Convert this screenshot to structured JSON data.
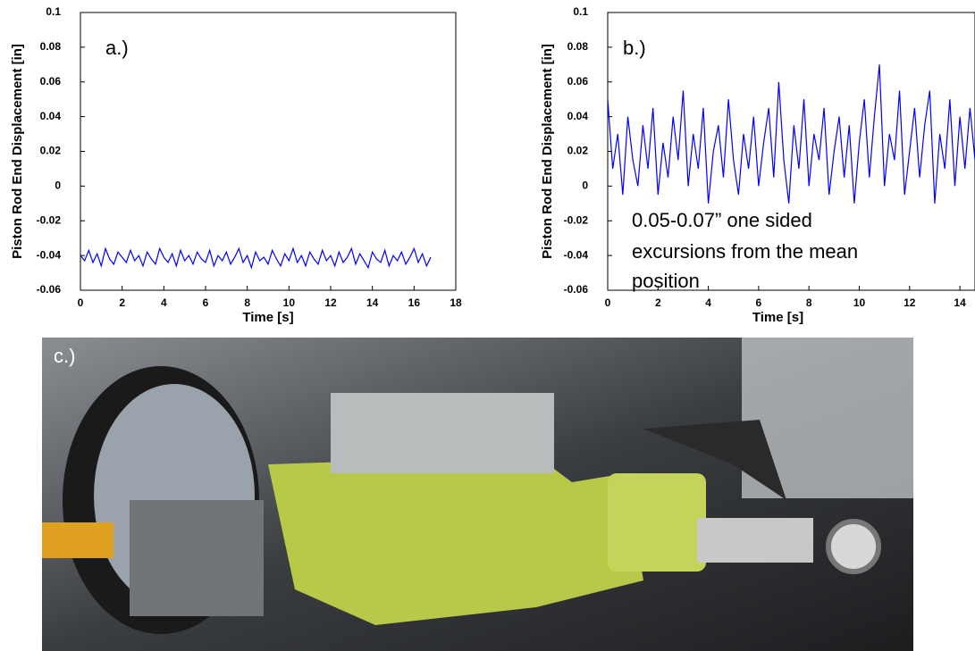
{
  "chart_data": [
    {
      "type": "line",
      "ylabel": "Piston Rod End Displacement [in]",
      "xlabel": "Time [s]",
      "annotations": [
        "a.)"
      ],
      "xlim": [
        0,
        18
      ],
      "xticks": [
        0,
        2,
        4,
        6,
        8,
        10,
        12,
        14,
        16,
        18
      ],
      "ylim": [
        -0.06,
        0.1
      ],
      "yticks": [
        -0.06,
        -0.04,
        -0.02,
        0,
        0.02,
        0.04,
        0.06,
        0.08,
        0.1
      ],
      "x": [
        0,
        0.2,
        0.4,
        0.6,
        0.8,
        1,
        1.2,
        1.4,
        1.6,
        1.8,
        2,
        2.2,
        2.4,
        2.6,
        2.8,
        3,
        3.2,
        3.4,
        3.6,
        3.8,
        4,
        4.2,
        4.4,
        4.6,
        4.8,
        5,
        5.2,
        5.4,
        5.6,
        5.8,
        6,
        6.2,
        6.4,
        6.6,
        6.8,
        7,
        7.2,
        7.4,
        7.6,
        7.8,
        8,
        8.2,
        8.4,
        8.6,
        8.8,
        9,
        9.2,
        9.4,
        9.6,
        9.8,
        10,
        10.2,
        10.4,
        10.6,
        10.8,
        11,
        11.2,
        11.4,
        11.6,
        11.8,
        12,
        12.2,
        12.4,
        12.6,
        12.8,
        13,
        13.2,
        13.4,
        13.6,
        13.8,
        14,
        14.2,
        14.4,
        14.6,
        14.8,
        15,
        15.2,
        15.4,
        15.6,
        15.8,
        16,
        16.2,
        16.4,
        16.6,
        16.8
      ],
      "series": [
        {
          "color": "#0000ff",
          "values": [
            -0.04,
            -0.043,
            -0.037,
            -0.044,
            -0.039,
            -0.046,
            -0.036,
            -0.042,
            -0.045,
            -0.038,
            -0.041,
            -0.044,
            -0.037,
            -0.043,
            -0.04,
            -0.046,
            -0.038,
            -0.042,
            -0.045,
            -0.036,
            -0.041,
            -0.044,
            -0.039,
            -0.046,
            -0.037,
            -0.043,
            -0.04,
            -0.045,
            -0.038,
            -0.042,
            -0.044,
            -0.037,
            -0.046,
            -0.04,
            -0.043,
            -0.038,
            -0.045,
            -0.041,
            -0.036,
            -0.044,
            -0.04,
            -0.047,
            -0.038,
            -0.043,
            -0.041,
            -0.045,
            -0.037,
            -0.042,
            -0.046,
            -0.039,
            -0.043,
            -0.036,
            -0.044,
            -0.04,
            -0.046,
            -0.038,
            -0.042,
            -0.045,
            -0.037,
            -0.043,
            -0.04,
            -0.046,
            -0.038,
            -0.044,
            -0.041,
            -0.036,
            -0.045,
            -0.039,
            -0.043,
            -0.047,
            -0.038,
            -0.042,
            -0.044,
            -0.037,
            -0.046,
            -0.04,
            -0.043,
            -0.038,
            -0.045,
            -0.041,
            -0.036,
            -0.044,
            -0.039,
            -0.046,
            -0.041
          ]
        }
      ]
    },
    {
      "type": "line",
      "ylabel": "Piston Rod End Displacement [in]",
      "xlabel": "Time [s]",
      "annotations": [
        "b.)",
        "0.05-0.07” one sided",
        "excursions from the mean",
        "position"
      ],
      "xlim": [
        0,
        14.6
      ],
      "xticks": [
        0,
        2,
        4,
        6,
        8,
        10,
        12,
        14
      ],
      "ylim": [
        -0.06,
        0.1
      ],
      "yticks": [
        -0.06,
        -0.04,
        -0.02,
        0,
        0.02,
        0.04,
        0.06,
        0.08,
        0.1
      ],
      "x": [
        0,
        0.2,
        0.4,
        0.6,
        0.8,
        1,
        1.2,
        1.4,
        1.6,
        1.8,
        2,
        2.2,
        2.4,
        2.6,
        2.8,
        3,
        3.2,
        3.4,
        3.6,
        3.8,
        4,
        4.2,
        4.4,
        4.6,
        4.8,
        5,
        5.2,
        5.4,
        5.6,
        5.8,
        6,
        6.2,
        6.4,
        6.6,
        6.8,
        7,
        7.2,
        7.4,
        7.6,
        7.8,
        8,
        8.2,
        8.4,
        8.6,
        8.8,
        9,
        9.2,
        9.4,
        9.6,
        9.8,
        10,
        10.2,
        10.4,
        10.6,
        10.8,
        11,
        11.2,
        11.4,
        11.6,
        11.8,
        12,
        12.2,
        12.4,
        12.6,
        12.8,
        13,
        13.2,
        13.4,
        13.6,
        13.8,
        14,
        14.2,
        14.4,
        14.6
      ],
      "series": [
        {
          "color": "#0000ff",
          "values": [
            0.05,
            0.01,
            0.03,
            -0.005,
            0.04,
            0.015,
            0.0,
            0.035,
            0.01,
            0.045,
            -0.005,
            0.025,
            0.005,
            0.04,
            0.015,
            0.055,
            0.0,
            0.03,
            0.01,
            0.045,
            -0.01,
            0.02,
            0.035,
            0.005,
            0.05,
            0.015,
            -0.005,
            0.03,
            0.01,
            0.04,
            0.0,
            0.025,
            0.045,
            0.005,
            0.06,
            0.015,
            -0.01,
            0.035,
            0.01,
            0.05,
            0.0,
            0.03,
            0.015,
            0.045,
            -0.005,
            0.02,
            0.04,
            0.005,
            0.035,
            -0.01,
            0.025,
            0.05,
            0.005,
            0.04,
            0.07,
            0.0,
            0.03,
            0.015,
            0.055,
            -0.005,
            0.02,
            0.045,
            0.005,
            0.035,
            0.055,
            -0.01,
            0.03,
            0.01,
            0.05,
            0.0,
            0.04,
            0.01,
            0.045,
            0.015
          ]
        }
      ]
    }
  ],
  "photo": {
    "label": "c.)"
  }
}
